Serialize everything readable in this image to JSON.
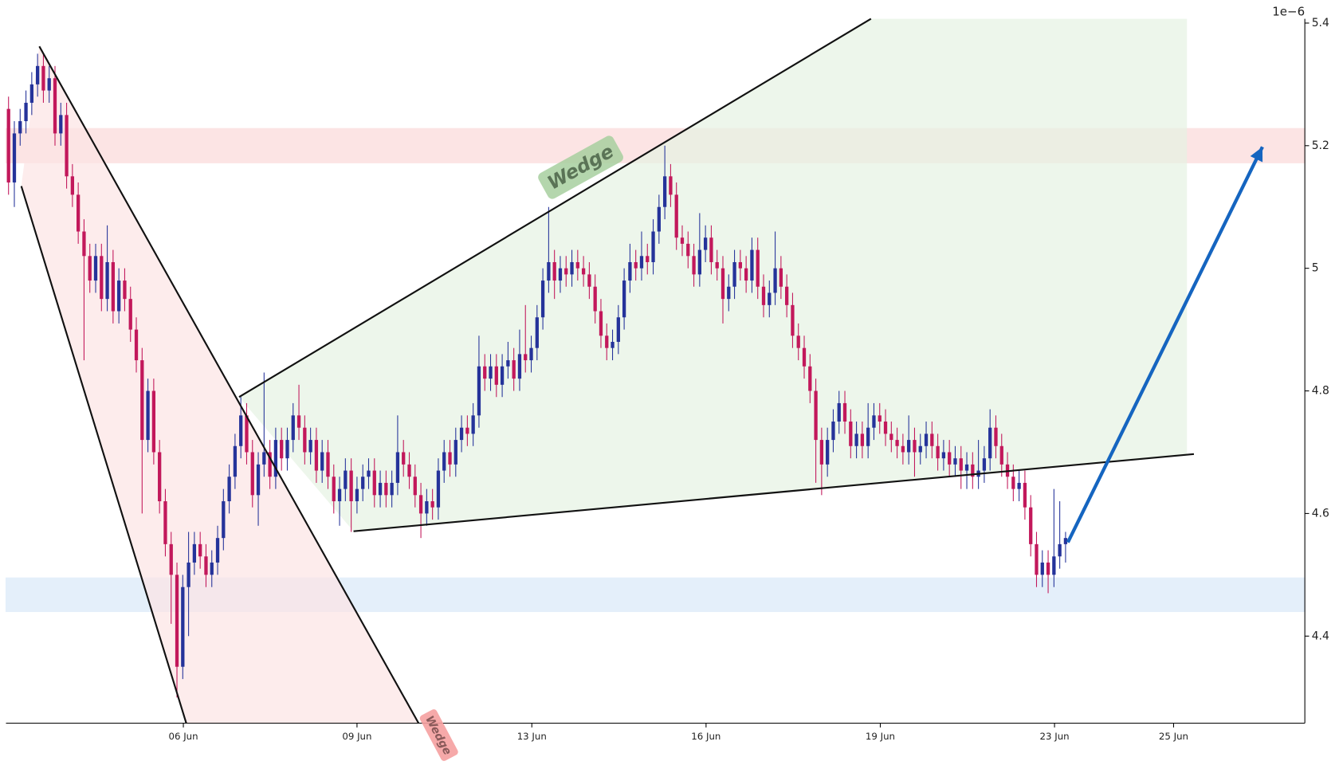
{
  "chart_data": {
    "type": "candlestick",
    "offset_label": "1e−6",
    "up_color": "#25339a",
    "down_color": "#c2185b",
    "xlim": [
      -0.44,
      223.2
    ],
    "ylim": [
      4.258,
      5.407
    ],
    "xticks": [
      {
        "value": 30.1,
        "label": "06 Jun"
      },
      {
        "value": 60,
        "label": "09 Jun"
      },
      {
        "value": 90.1,
        "label": "13 Jun"
      },
      {
        "value": 120.1,
        "label": "16 Jun"
      },
      {
        "value": 150.1,
        "label": "19 Jun"
      },
      {
        "value": 180.1,
        "label": "23 Jun"
      },
      {
        "value": 200.6,
        "label": "25 Jun"
      }
    ],
    "yticks": [
      4.4,
      4.6,
      4.8,
      5.0,
      5.2,
      5.4
    ],
    "candles": [
      [
        5.26,
        5.28,
        5.12,
        5.14
      ],
      [
        5.14,
        5.24,
        5.1,
        5.22
      ],
      [
        5.22,
        5.26,
        5.2,
        5.24
      ],
      [
        5.24,
        5.29,
        5.22,
        5.27
      ],
      [
        5.27,
        5.32,
        5.25,
        5.3
      ],
      [
        5.3,
        5.35,
        5.28,
        5.33
      ],
      [
        5.33,
        5.35,
        5.27,
        5.29
      ],
      [
        5.29,
        5.33,
        5.27,
        5.31
      ],
      [
        5.31,
        5.33,
        5.2,
        5.22
      ],
      [
        5.22,
        5.27,
        5.2,
        5.25
      ],
      [
        5.25,
        5.27,
        5.13,
        5.15
      ],
      [
        5.15,
        5.17,
        5.1,
        5.12
      ],
      [
        5.12,
        5.14,
        5.04,
        5.06
      ],
      [
        5.06,
        5.08,
        4.85,
        5.02
      ],
      [
        5.02,
        5.04,
        4.96,
        4.98
      ],
      [
        4.98,
        5.04,
        4.96,
        5.02
      ],
      [
        5.02,
        5.04,
        4.93,
        4.95
      ],
      [
        4.95,
        5.07,
        4.93,
        5.01
      ],
      [
        5.01,
        5.03,
        4.91,
        4.93
      ],
      [
        4.93,
        5.0,
        4.91,
        4.98
      ],
      [
        4.98,
        5.0,
        4.93,
        4.95
      ],
      [
        4.95,
        4.97,
        4.88,
        4.9
      ],
      [
        4.9,
        4.92,
        4.83,
        4.85
      ],
      [
        4.85,
        4.87,
        4.6,
        4.72
      ],
      [
        4.72,
        4.82,
        4.7,
        4.8
      ],
      [
        4.8,
        4.82,
        4.68,
        4.7
      ],
      [
        4.7,
        4.72,
        4.6,
        4.62
      ],
      [
        4.62,
        4.64,
        4.53,
        4.55
      ],
      [
        4.55,
        4.57,
        4.42,
        4.5
      ],
      [
        4.5,
        4.52,
        4.3,
        4.35
      ],
      [
        4.35,
        4.5,
        4.33,
        4.48
      ],
      [
        4.48,
        4.57,
        4.4,
        4.52
      ],
      [
        4.52,
        4.57,
        4.5,
        4.55
      ],
      [
        4.55,
        4.57,
        4.51,
        4.53
      ],
      [
        4.53,
        4.55,
        4.48,
        4.5
      ],
      [
        4.5,
        4.54,
        4.48,
        4.52
      ],
      [
        4.52,
        4.58,
        4.5,
        4.56
      ],
      [
        4.56,
        4.64,
        4.54,
        4.62
      ],
      [
        4.62,
        4.68,
        4.6,
        4.66
      ],
      [
        4.66,
        4.73,
        4.64,
        4.71
      ],
      [
        4.71,
        4.79,
        4.69,
        4.76
      ],
      [
        4.76,
        4.78,
        4.68,
        4.7
      ],
      [
        4.7,
        4.72,
        4.61,
        4.63
      ],
      [
        4.63,
        4.7,
        4.58,
        4.68
      ],
      [
        4.68,
        4.83,
        4.66,
        4.7
      ],
      [
        4.7,
        4.72,
        4.64,
        4.66
      ],
      [
        4.66,
        4.74,
        4.64,
        4.72
      ],
      [
        4.72,
        4.74,
        4.67,
        4.69
      ],
      [
        4.69,
        4.74,
        4.67,
        4.72
      ],
      [
        4.72,
        4.78,
        4.7,
        4.76
      ],
      [
        4.76,
        4.81,
        4.72,
        4.74
      ],
      [
        4.74,
        4.76,
        4.68,
        4.7
      ],
      [
        4.7,
        4.74,
        4.68,
        4.72
      ],
      [
        4.72,
        4.74,
        4.65,
        4.67
      ],
      [
        4.67,
        4.72,
        4.65,
        4.7
      ],
      [
        4.7,
        4.72,
        4.64,
        4.66
      ],
      [
        4.66,
        4.68,
        4.6,
        4.62
      ],
      [
        4.62,
        4.66,
        4.58,
        4.64
      ],
      [
        4.64,
        4.69,
        4.62,
        4.67
      ],
      [
        4.67,
        4.69,
        4.57,
        4.62
      ],
      [
        4.62,
        4.66,
        4.6,
        4.64
      ],
      [
        4.64,
        4.68,
        4.62,
        4.66
      ],
      [
        4.66,
        4.69,
        4.64,
        4.67
      ],
      [
        4.67,
        4.69,
        4.61,
        4.63
      ],
      [
        4.63,
        4.67,
        4.61,
        4.65
      ],
      [
        4.65,
        4.67,
        4.61,
        4.63
      ],
      [
        4.63,
        4.67,
        4.61,
        4.65
      ],
      [
        4.65,
        4.76,
        4.63,
        4.7
      ],
      [
        4.7,
        4.72,
        4.66,
        4.68
      ],
      [
        4.68,
        4.7,
        4.64,
        4.66
      ],
      [
        4.66,
        4.68,
        4.61,
        4.63
      ],
      [
        4.63,
        4.65,
        4.56,
        4.6
      ],
      [
        4.6,
        4.64,
        4.58,
        4.62
      ],
      [
        4.62,
        4.64,
        4.59,
        4.61
      ],
      [
        4.61,
        4.69,
        4.59,
        4.67
      ],
      [
        4.67,
        4.72,
        4.65,
        4.7
      ],
      [
        4.7,
        4.72,
        4.66,
        4.68
      ],
      [
        4.68,
        4.74,
        4.66,
        4.72
      ],
      [
        4.72,
        4.76,
        4.7,
        4.74
      ],
      [
        4.74,
        4.76,
        4.71,
        4.73
      ],
      [
        4.73,
        4.78,
        4.71,
        4.76
      ],
      [
        4.76,
        4.89,
        4.74,
        4.84
      ],
      [
        4.84,
        4.86,
        4.8,
        4.82
      ],
      [
        4.82,
        4.86,
        4.8,
        4.84
      ],
      [
        4.84,
        4.86,
        4.79,
        4.81
      ],
      [
        4.81,
        4.86,
        4.79,
        4.84
      ],
      [
        4.84,
        4.88,
        4.82,
        4.85
      ],
      [
        4.85,
        4.87,
        4.8,
        4.82
      ],
      [
        4.82,
        4.9,
        4.8,
        4.86
      ],
      [
        4.86,
        4.94,
        4.83,
        4.85
      ],
      [
        4.85,
        4.89,
        4.83,
        4.87
      ],
      [
        4.87,
        4.94,
        4.85,
        4.92
      ],
      [
        4.92,
        5.0,
        4.9,
        4.98
      ],
      [
        4.98,
        5.1,
        4.96,
        5.01
      ],
      [
        5.01,
        5.03,
        4.95,
        4.98
      ],
      [
        4.98,
        5.02,
        4.96,
        5.0
      ],
      [
        5.0,
        5.02,
        4.97,
        4.99
      ],
      [
        4.99,
        5.03,
        4.97,
        5.01
      ],
      [
        5.01,
        5.03,
        4.98,
        5.0
      ],
      [
        5.0,
        5.02,
        4.97,
        4.99
      ],
      [
        4.99,
        5.01,
        4.95,
        4.97
      ],
      [
        4.97,
        4.99,
        4.91,
        4.93
      ],
      [
        4.93,
        4.95,
        4.87,
        4.89
      ],
      [
        4.89,
        4.91,
        4.85,
        4.87
      ],
      [
        4.87,
        4.9,
        4.85,
        4.88
      ],
      [
        4.88,
        4.94,
        4.86,
        4.92
      ],
      [
        4.92,
        5.0,
        4.9,
        4.98
      ],
      [
        4.98,
        5.04,
        4.96,
        5.01
      ],
      [
        5.01,
        5.03,
        4.98,
        5.0
      ],
      [
        5.0,
        5.06,
        4.98,
        5.02
      ],
      [
        5.02,
        5.04,
        4.99,
        5.01
      ],
      [
        5.01,
        5.08,
        4.99,
        5.06
      ],
      [
        5.06,
        5.12,
        5.04,
        5.1
      ],
      [
        5.1,
        5.2,
        5.08,
        5.15
      ],
      [
        5.15,
        5.17,
        5.1,
        5.12
      ],
      [
        5.12,
        5.14,
        5.03,
        5.05
      ],
      [
        5.05,
        5.07,
        5.02,
        5.04
      ],
      [
        5.04,
        5.06,
        5.0,
        5.02
      ],
      [
        5.02,
        5.04,
        4.97,
        4.99
      ],
      [
        4.99,
        5.09,
        4.97,
        5.03
      ],
      [
        5.03,
        5.07,
        5.01,
        5.05
      ],
      [
        5.05,
        5.07,
        4.99,
        5.01
      ],
      [
        5.01,
        5.03,
        4.98,
        5.0
      ],
      [
        5.0,
        5.02,
        4.91,
        4.95
      ],
      [
        4.95,
        4.99,
        4.93,
        4.97
      ],
      [
        4.97,
        5.03,
        4.95,
        5.01
      ],
      [
        5.01,
        5.03,
        4.98,
        5.0
      ],
      [
        5.0,
        5.02,
        4.96,
        4.98
      ],
      [
        4.98,
        5.05,
        4.96,
        5.03
      ],
      [
        5.03,
        5.05,
        4.95,
        4.97
      ],
      [
        4.97,
        4.99,
        4.92,
        4.94
      ],
      [
        4.94,
        4.98,
        4.92,
        4.96
      ],
      [
        4.96,
        5.06,
        4.94,
        5.0
      ],
      [
        5.0,
        5.02,
        4.95,
        4.97
      ],
      [
        4.97,
        4.99,
        4.92,
        4.94
      ],
      [
        4.94,
        4.96,
        4.87,
        4.89
      ],
      [
        4.89,
        4.91,
        4.85,
        4.87
      ],
      [
        4.87,
        4.89,
        4.82,
        4.84
      ],
      [
        4.84,
        4.86,
        4.78,
        4.8
      ],
      [
        4.8,
        4.82,
        4.65,
        4.72
      ],
      [
        4.72,
        4.74,
        4.63,
        4.68
      ],
      [
        4.68,
        4.74,
        4.66,
        4.72
      ],
      [
        4.72,
        4.77,
        4.7,
        4.75
      ],
      [
        4.75,
        4.8,
        4.73,
        4.78
      ],
      [
        4.78,
        4.8,
        4.73,
        4.75
      ],
      [
        4.75,
        4.77,
        4.69,
        4.71
      ],
      [
        4.71,
        4.75,
        4.69,
        4.73
      ],
      [
        4.73,
        4.75,
        4.69,
        4.71
      ],
      [
        4.71,
        4.78,
        4.69,
        4.74
      ],
      [
        4.74,
        4.78,
        4.72,
        4.76
      ],
      [
        4.76,
        4.78,
        4.73,
        4.75
      ],
      [
        4.75,
        4.77,
        4.71,
        4.73
      ],
      [
        4.73,
        4.75,
        4.7,
        4.72
      ],
      [
        4.72,
        4.74,
        4.69,
        4.71
      ],
      [
        4.71,
        4.73,
        4.68,
        4.7
      ],
      [
        4.7,
        4.76,
        4.68,
        4.72
      ],
      [
        4.72,
        4.74,
        4.66,
        4.7
      ],
      [
        4.7,
        4.73,
        4.68,
        4.71
      ],
      [
        4.71,
        4.75,
        4.69,
        4.73
      ],
      [
        4.73,
        4.75,
        4.69,
        4.71
      ],
      [
        4.71,
        4.73,
        4.67,
        4.69
      ],
      [
        4.69,
        4.72,
        4.67,
        4.7
      ],
      [
        4.7,
        4.72,
        4.66,
        4.68
      ],
      [
        4.68,
        4.71,
        4.66,
        4.69
      ],
      [
        4.69,
        4.71,
        4.64,
        4.67
      ],
      [
        4.67,
        4.7,
        4.64,
        4.68
      ],
      [
        4.68,
        4.7,
        4.64,
        4.66
      ],
      [
        4.66,
        4.72,
        4.64,
        4.67
      ],
      [
        4.67,
        4.71,
        4.65,
        4.69
      ],
      [
        4.69,
        4.77,
        4.67,
        4.74
      ],
      [
        4.74,
        4.76,
        4.69,
        4.71
      ],
      [
        4.71,
        4.73,
        4.66,
        4.68
      ],
      [
        4.68,
        4.7,
        4.64,
        4.66
      ],
      [
        4.66,
        4.68,
        4.62,
        4.64
      ],
      [
        4.64,
        4.67,
        4.62,
        4.65
      ],
      [
        4.65,
        4.67,
        4.59,
        4.61
      ],
      [
        4.61,
        4.63,
        4.53,
        4.55
      ],
      [
        4.55,
        4.57,
        4.48,
        4.5
      ],
      [
        4.5,
        4.54,
        4.48,
        4.52
      ],
      [
        4.52,
        4.54,
        4.47,
        4.5
      ],
      [
        4.5,
        4.64,
        4.48,
        4.53
      ],
      [
        4.53,
        4.62,
        4.51,
        4.55
      ],
      [
        4.55,
        4.57,
        4.52,
        4.56
      ]
    ],
    "zones": [
      {
        "y": [
          5.172,
          5.228
        ],
        "color": "#fbd3d3"
      },
      {
        "y": [
          4.44,
          4.495
        ],
        "color": "#d3e6f8"
      }
    ],
    "wedges": [
      {
        "label": "Wedge",
        "color": "#f5a0a0",
        "fill": "#fce4e4",
        "upper": {
          "x": [
            5.3,
            70.6
          ],
          "y": [
            5.362,
            4.258
          ]
        },
        "lower": {
          "x": [
            2.2,
            30.6
          ],
          "y": [
            5.134,
            4.258
          ]
        }
      },
      {
        "label": "Wedge",
        "color": "#a7cf9f",
        "fill": "#e6f2e2",
        "fill_x_end": 202.9,
        "upper": {
          "x": [
            39.7,
            148.5
          ],
          "y": [
            4.79,
            5.407
          ]
        },
        "lower": {
          "x": [
            59.4,
            204.1
          ],
          "y": [
            4.571,
            4.697
          ]
        }
      }
    ],
    "arrow": {
      "x": [
        182.4,
        215.9
      ],
      "y": [
        4.553,
        5.198
      ],
      "color": "#1565c0"
    }
  }
}
